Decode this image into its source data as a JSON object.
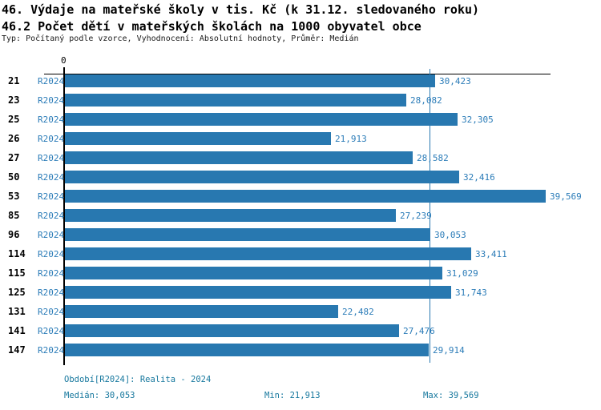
{
  "header": {
    "title_line1": "46. Výdaje na mateřské školy v tis. Kč (k 31.12. sledovaného roku)",
    "title_line2": "46.2 Počet dětí v mateřských školách na 1000 obyvatel obce",
    "subtitle": "Typ: Počítaný podle vzorce, Vyhodnocení: Absolutní hodnoty, Průměr: Medián"
  },
  "chart_data": {
    "type": "bar",
    "orientation": "horizontal",
    "title": "46. Výdaje na mateřské školy v tis. Kč (k 31.12. sledovaného roku)",
    "subtitle": "46.2 Počet dětí v mateřských školách na 1000 obyvatel obce",
    "categories": [
      "21",
      "23",
      "25",
      "26",
      "27",
      "50",
      "53",
      "85",
      "96",
      "114",
      "115",
      "125",
      "131",
      "141",
      "147"
    ],
    "series": [
      {
        "name": "R2024",
        "values": [
          30423,
          28082,
          32305,
          21913,
          28582,
          32416,
          39569,
          27239,
          30053,
          33411,
          31029,
          31743,
          22482,
          27476,
          29914
        ],
        "value_labels": [
          "30,423",
          "28,082",
          "32,305",
          "21,913",
          "28,582",
          "32,416",
          "39,569",
          "27,239",
          "30,053",
          "33,411",
          "31,029",
          "31,743",
          "22,482",
          "27,476",
          "29,914"
        ]
      }
    ],
    "axis": {
      "zero_tick_label": "0",
      "xlim": [
        0,
        40000
      ],
      "median_value": 30053,
      "median_reference_line": true
    },
    "legend_position": "none",
    "grid": false,
    "bar_color": "#2878b0",
    "median_line_color": "#2878b0",
    "stats": {
      "median": 30053,
      "min": 21913,
      "max": 39569
    }
  },
  "footer": {
    "period": "Období[R2024]: Realita - 2024",
    "median": "Medián: 30,053",
    "min": "Min: 21,913",
    "max": "Max: 39,569"
  }
}
